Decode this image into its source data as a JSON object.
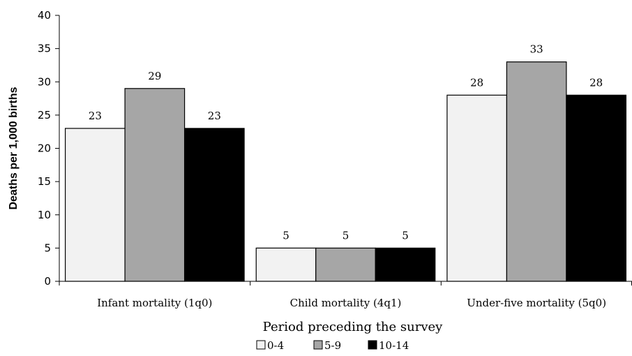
{
  "chart_data": {
    "type": "bar",
    "categories": [
      "Infant mortality (1q0)",
      "Child mortality (4q1)",
      "Under-five mortality (5q0)"
    ],
    "series": [
      {
        "name": "0-4",
        "values": [
          23,
          5,
          28
        ],
        "color": "#f2f2f2"
      },
      {
        "name": "5-9",
        "values": [
          29,
          5,
          33
        ],
        "color": "#a6a6a6"
      },
      {
        "name": "10-14",
        "values": [
          23,
          5,
          28
        ],
        "color": "#000000"
      }
    ],
    "xlabel": "Period preceding the survey",
    "ylabel": "Deaths per 1,000 births",
    "ylim": [
      0,
      40
    ],
    "yticks": [
      0,
      5,
      10,
      15,
      20,
      25,
      30,
      35,
      40
    ],
    "grid": false,
    "legend_position": "bottom"
  }
}
